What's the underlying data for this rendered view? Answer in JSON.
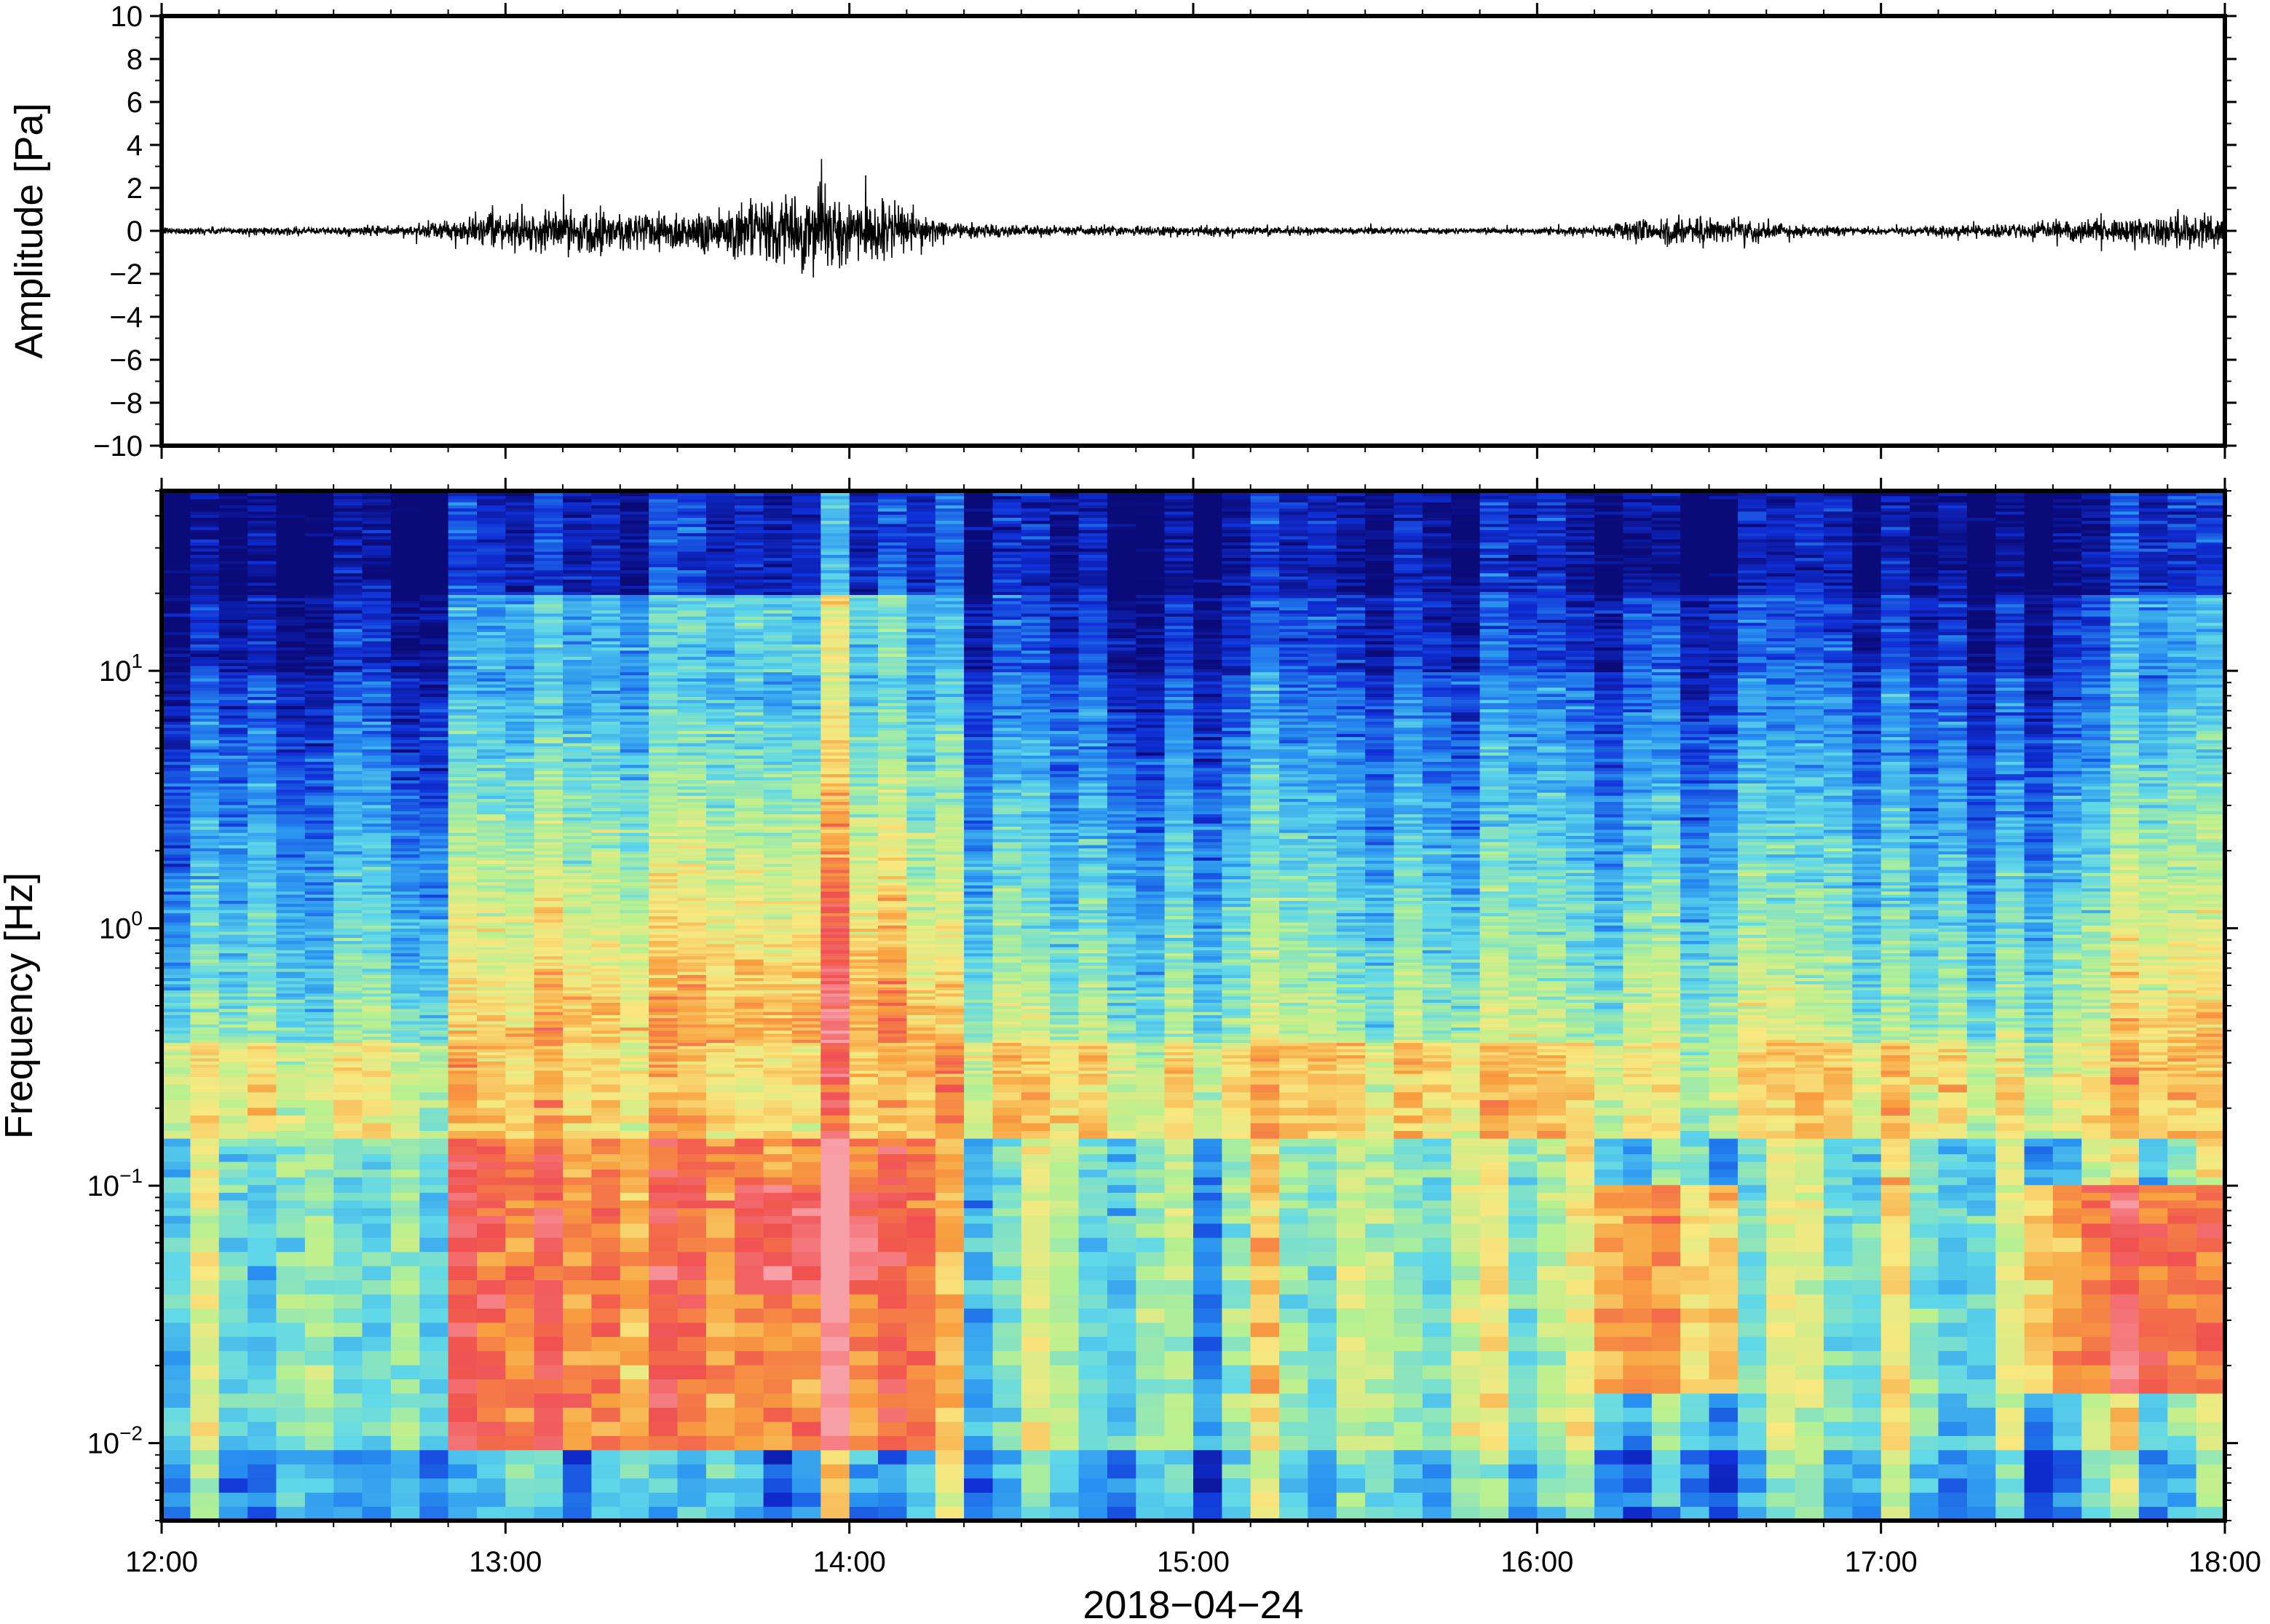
{
  "chart_data": [
    {
      "type": "line",
      "panel": "waveform",
      "title": "",
      "ylabel": "Amplitude [Pa]",
      "ylim": [
        -10,
        10
      ],
      "yticks": [
        10,
        8,
        6,
        4,
        2,
        0,
        -2,
        -4,
        -6,
        -8,
        -10
      ],
      "ytick_labels": [
        "10",
        "8",
        "6",
        "4",
        "2",
        "0",
        "−2",
        "−4",
        "−6",
        "−8",
        "−10"
      ],
      "xlim": [
        "12:00",
        "18:00"
      ],
      "envelope_x_hours": [
        12.0,
        12.5,
        12.75,
        12.9,
        13.2,
        13.5,
        13.8,
        13.9,
        14.1,
        14.3,
        14.5,
        15.0,
        15.5,
        16.0,
        16.2,
        16.3,
        16.5,
        16.6,
        16.8,
        17.0,
        17.4,
        17.7,
        18.0
      ],
      "envelope_y_pa": [
        0.15,
        0.15,
        0.25,
        0.55,
        0.9,
        0.8,
        1.3,
        1.6,
        1.1,
        0.35,
        0.2,
        0.2,
        0.12,
        0.12,
        0.2,
        0.55,
        0.6,
        0.45,
        0.2,
        0.15,
        0.3,
        0.5,
        0.8
      ]
    },
    {
      "type": "heatmap",
      "panel": "spectrogram",
      "title": "",
      "ylabel": "Frequency [Hz]",
      "yscale": "log",
      "ylim": [
        0.005,
        50
      ],
      "yticks": [
        {
          "value": 10,
          "base": "10",
          "exp": "1"
        },
        {
          "value": 1,
          "base": "10",
          "exp": "0"
        },
        {
          "value": 0.1,
          "base": "10",
          "exp": "−1"
        },
        {
          "value": 0.01,
          "base": "10",
          "exp": "−2"
        }
      ],
      "xlabel": "2018−04−24",
      "xlim": [
        "12:00",
        "18:00"
      ],
      "xticks": [
        "12:00",
        "13:00",
        "14:00",
        "15:00",
        "16:00",
        "17:00",
        "18:00"
      ],
      "colormap": [
        "#0a0a78",
        "#1030d8",
        "#2890f0",
        "#60d8e8",
        "#b8f090",
        "#f8e880",
        "#f8a040",
        "#f05050",
        "#f8a0a8"
      ],
      "high_energy_bands": [
        {
          "time_range": [
            "12:50",
            "14:15"
          ],
          "freq_range_hz": [
            0.01,
            0.15
          ],
          "level": "high"
        },
        {
          "time_range": [
            "13:40",
            "14:05"
          ],
          "freq_range_hz": [
            0.04,
            0.1
          ],
          "level": "peak"
        },
        {
          "time_range": [
            "16:10",
            "16:35"
          ],
          "freq_range_hz": [
            0.015,
            0.1
          ],
          "level": "high"
        },
        {
          "time_range": [
            "17:25",
            "18:00"
          ],
          "freq_range_hz": [
            0.015,
            0.1
          ],
          "level": "high"
        }
      ],
      "background_band_hz": [
        0.15,
        0.35
      ]
    }
  ]
}
